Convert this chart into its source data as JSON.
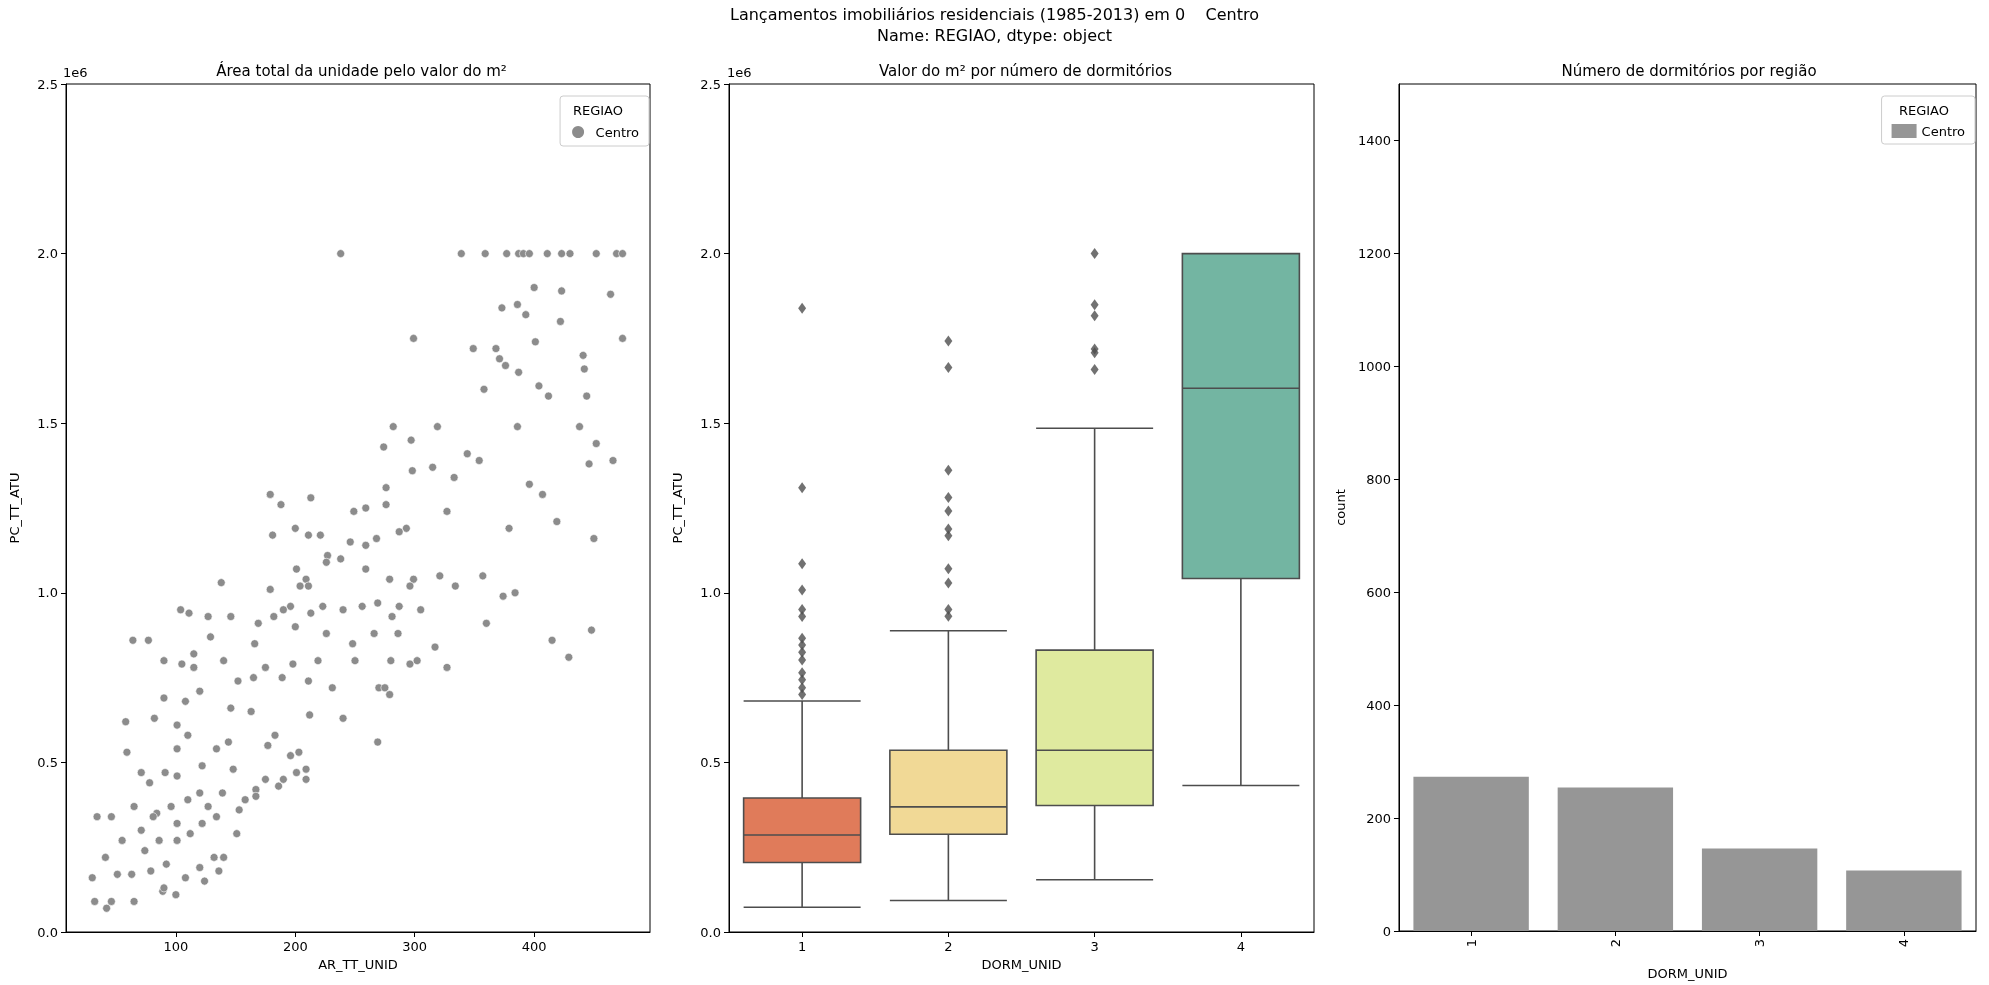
{
  "chart_data": [
    {
      "type": "other",
      "title": "Lançamentos imobiliários residenciais (1985-2013) em 0    Centro",
      "subtitle": "Name: REGIAO, dtype: object"
    },
    {
      "type": "scatter",
      "title": "Área total da unidade pelo valor do m²",
      "xlabel": "AR_TT_UNID",
      "ylabel": "PC_TT_ATU",
      "legend": "top right",
      "legend_title": "REGIAO",
      "marker": "circle",
      "annotations": [
        "1e6"
      ],
      "xlim": [
        8,
        497
      ],
      "xticks": [
        100,
        200,
        300,
        400
      ],
      "ylim": [
        0,
        2.5
      ],
      "yticks": [
        {
          "value": 0,
          "label": "0.0"
        },
        {
          "value": 0.5,
          "label": "0.5"
        },
        {
          "value": 1,
          "label": "1.0"
        },
        {
          "value": 1.5,
          "label": "1.5"
        },
        {
          "value": 2,
          "label": "2.0"
        },
        {
          "value": 2.5,
          "label": "2.5"
        }
      ],
      "series": [
        {
          "name": "Centro",
          "color": "#8c8c8c",
          "x": [
            238,
            339,
            359,
            377,
            387,
            391,
            396,
            411,
            423,
            430,
            452,
            469,
            474,
            400,
            423,
            373,
            386,
            393,
            422,
            464,
            474,
            299,
            401,
            349,
            368,
            441,
            371,
            376,
            442,
            387,
            404,
            358,
            412,
            444,
            282,
            319,
            386,
            438,
            452,
            297,
            274,
            344,
            354,
            466,
            446,
            315,
            298,
            333,
            396,
            276,
            407,
            179,
            213,
            188,
            276,
            249,
            259,
            327,
            419,
            379,
            181,
            200,
            211,
            221,
            293,
            287,
            268,
            450,
            246,
            227,
            238,
            259,
            226,
            259,
            201,
            321,
            357,
            138,
            209,
            279,
            299,
            204,
            211,
            296,
            334,
            179,
            374,
            384,
            104,
            111,
            146,
            127,
            196,
            190,
            223,
            240,
            256,
            269,
            287,
            305,
            213,
            182,
            169,
            281,
            360,
            448,
            77,
            129,
            166,
            248,
            200,
            226,
            266,
            286,
            415,
            429,
            317,
            327,
            296,
            302,
            280,
            250,
            219,
            198,
            175,
            140,
            115,
            90,
            270,
            275,
            279,
            231,
            211,
            165,
            189,
            152,
            269,
            240,
            212,
            163,
            177,
            183,
            196,
            203,
            201,
            209,
            209,
            190,
            186,
            175,
            167,
            167,
            158,
            153,
            64,
            58,
            34,
            46,
            59,
            30,
            32,
            42,
            46,
            65,
            89,
            100,
            124,
            136,
            140,
            132,
            120,
            108,
            90,
            79,
            63,
            51,
            41,
            55,
            71,
            84,
            96,
            110,
            120,
            127,
            101,
            74,
            86,
            101,
            112,
            78,
            91,
            101,
            110,
            122,
            134,
            101,
            108,
            120,
            115,
            105,
            90,
            82,
            71,
            101,
            151,
            144,
            146,
            81,
            92,
            65,
            122,
            134,
            148,
            139
          ],
          "values": [
            2.0,
            2.0,
            2.0,
            2.0,
            2.0,
            2.0,
            2.0,
            2.0,
            2.0,
            2.0,
            2.0,
            2.0,
            2.0,
            1.9,
            1.89,
            1.84,
            1.85,
            1.82,
            1.8,
            1.88,
            1.75,
            1.75,
            1.74,
            1.72,
            1.72,
            1.7,
            1.69,
            1.67,
            1.66,
            1.65,
            1.61,
            1.6,
            1.58,
            1.58,
            1.49,
            1.49,
            1.49,
            1.49,
            1.44,
            1.45,
            1.43,
            1.41,
            1.39,
            1.39,
            1.38,
            1.37,
            1.36,
            1.34,
            1.32,
            1.31,
            1.29,
            1.29,
            1.28,
            1.26,
            1.26,
            1.24,
            1.25,
            1.24,
            1.21,
            1.19,
            1.17,
            1.19,
            1.17,
            1.17,
            1.19,
            1.18,
            1.16,
            1.16,
            1.15,
            1.11,
            1.1,
            1.14,
            1.09,
            1.07,
            1.07,
            1.05,
            1.05,
            1.03,
            1.04,
            1.04,
            1.04,
            1.02,
            1.02,
            1.02,
            1.02,
            1.01,
            0.99,
            1.0,
            0.95,
            0.94,
            0.93,
            0.93,
            0.96,
            0.95,
            0.96,
            0.95,
            0.96,
            0.97,
            0.96,
            0.95,
            0.94,
            0.93,
            0.91,
            0.93,
            0.91,
            0.89,
            0.86,
            0.87,
            0.85,
            0.85,
            0.9,
            0.88,
            0.88,
            0.88,
            0.86,
            0.81,
            0.84,
            0.78,
            0.79,
            0.8,
            0.8,
            0.8,
            0.8,
            0.79,
            0.78,
            0.8,
            0.82,
            0.8,
            0.72,
            0.72,
            0.7,
            0.72,
            0.74,
            0.75,
            0.75,
            0.74,
            0.56,
            0.63,
            0.64,
            0.65,
            0.55,
            0.58,
            0.52,
            0.53,
            0.47,
            0.48,
            0.45,
            0.45,
            0.43,
            0.45,
            0.42,
            0.4,
            0.39,
            0.36,
            0.86,
            0.62,
            0.34,
            0.34,
            0.53,
            0.16,
            0.09,
            0.07,
            0.09,
            0.09,
            0.12,
            0.11,
            0.15,
            0.18,
            0.22,
            0.22,
            0.19,
            0.16,
            0.13,
            0.18,
            0.17,
            0.17,
            0.22,
            0.27,
            0.3,
            0.35,
            0.37,
            0.39,
            0.41,
            0.37,
            0.32,
            0.24,
            0.27,
            0.27,
            0.29,
            0.44,
            0.47,
            0.54,
            0.58,
            0.49,
            0.54,
            0.61,
            0.68,
            0.71,
            0.78,
            0.79,
            0.69,
            0.63,
            0.47,
            0.46,
            0.29,
            0.56,
            0.66,
            0.34,
            0.2,
            0.37,
            0.32,
            0.34,
            0.48,
            0.41
          ]
        }
      ]
    },
    {
      "type": "box",
      "title": "Valor do m² por número de dormitórios",
      "xlabel": "DORM_UNID",
      "ylabel": "PC_TT_ATU",
      "marker": "diamond",
      "annotations": [
        "1e6"
      ],
      "categories": [
        "1",
        "2",
        "3",
        "4"
      ],
      "colors": [
        "#e07b5a",
        "#f1d996",
        "#dfea9f",
        "#73b5a2"
      ],
      "ylim": [
        0,
        2.5
      ],
      "yticks": [
        {
          "value": 0,
          "label": "0.0"
        },
        {
          "value": 0.5,
          "label": "0.5"
        },
        {
          "value": 1,
          "label": "1.0"
        },
        {
          "value": 1.5,
          "label": "1.5"
        },
        {
          "value": 2,
          "label": "2.0"
        },
        {
          "value": 2.5,
          "label": "2.5"
        }
      ],
      "boxes": [
        {
          "low": 0.073,
          "q1": 0.205,
          "median": 0.286,
          "q3": 0.395,
          "high": 0.681,
          "outliers": [
            1.839,
            1.31,
            1.086,
            1.008,
            0.951,
            0.93,
            0.866,
            0.846,
            0.825,
            0.802,
            0.764,
            0.744,
            0.72,
            0.7
          ]
        },
        {
          "low": 0.093,
          "q1": 0.288,
          "median": 0.369,
          "q3": 0.536,
          "high": 0.888,
          "outliers": [
            1.742,
            1.664,
            1.361,
            1.281,
            1.241,
            1.188,
            1.168,
            1.071,
            1.029,
            0.951,
            0.931
          ]
        },
        {
          "low": 0.154,
          "q1": 0.373,
          "median": 0.536,
          "q3": 0.831,
          "high": 1.485,
          "outliers": [
            2.0,
            1.849,
            1.817,
            1.719,
            1.708,
            1.658
          ]
        },
        {
          "low": 0.432,
          "q1": 1.042,
          "median": 1.603,
          "q3": 2.0,
          "high": 2.0
        }
      ]
    },
    {
      "type": "bar",
      "title": "Número de dormitórios por região",
      "xlabel": "DORM_UNID",
      "ylabel": "count",
      "legend": "top right",
      "legend_title": "REGIAO",
      "categories": [
        "1",
        "2",
        "3",
        "4"
      ],
      "ylim": [
        0,
        1500
      ],
      "yticks": [
        0,
        200,
        400,
        600,
        800,
        1000,
        1200,
        1400
      ],
      "series": [
        {
          "name": "Centro",
          "color": "#969696",
          "values": [
            273,
            254,
            146,
            107
          ]
        }
      ]
    }
  ]
}
